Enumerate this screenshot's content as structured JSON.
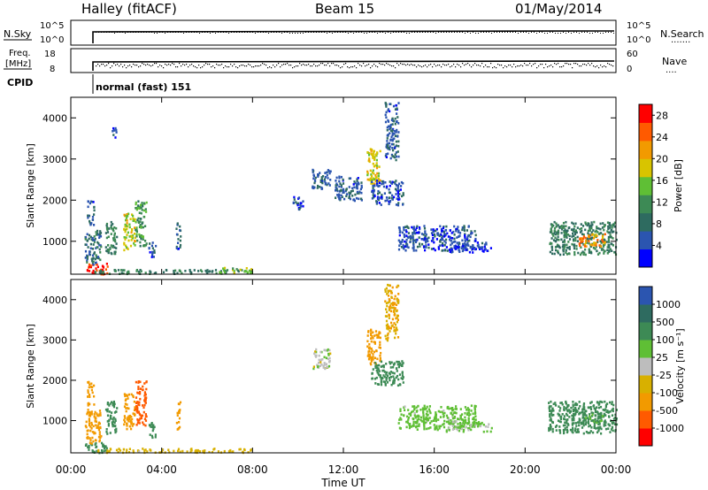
{
  "header": {
    "station": "Halley (fitACF)",
    "beam": "Beam 15",
    "date": "01/May/2014"
  },
  "param_panels": {
    "nsky_label": "N.Sky",
    "nsearch_label": "N.Search",
    "nsearch_marker": ".......",
    "noise_ticks": [
      "10^5",
      "10^0"
    ],
    "freq_label_1": "Freq.",
    "freq_label_2": "[MHz]",
    "freq_ticks": [
      "18",
      "8"
    ],
    "nave_label": "Nave",
    "nave_marker": "....",
    "nave_ticks": [
      "60",
      "0"
    ],
    "cpid_label": "CPID",
    "cpid_text": "normal (fast) 151"
  },
  "colors": {
    "power": [
      "#0000ff",
      "#2b55b0",
      "#2e6b60",
      "#3d8a55",
      "#5fbf35",
      "#d8c400",
      "#f29a00",
      "#ff5a00",
      "#ff0000"
    ],
    "velocity": [
      "#ff0000",
      "#ff5a00",
      "#f29a00",
      "#d8b000",
      "#bdbdbd",
      "#5fbf35",
      "#3d8a55",
      "#2e6b60",
      "#2b55b0"
    ]
  },
  "chart_data": [
    {
      "type": "heatmap",
      "panel": "power",
      "ylabel": "Slant Range [km]",
      "xlim": [
        "00:00",
        "00:00"
      ],
      "ylim": [
        200,
        4500
      ],
      "yticks": [
        "1000",
        "2000",
        "3000",
        "4000"
      ],
      "colorbar": {
        "label": "Power [dB]",
        "ticks": [
          "4",
          "8",
          "12",
          "16",
          "20",
          "24",
          "28"
        ],
        "range": [
          0,
          30
        ]
      },
      "regions": [
        {
          "t0": 0.6,
          "t1": 1.6,
          "r0": 220,
          "r1": 480,
          "value": 28
        },
        {
          "t0": 0.6,
          "t1": 1.3,
          "r0": 450,
          "r1": 1300,
          "value": 8
        },
        {
          "t0": 0.7,
          "t1": 1.0,
          "r0": 1400,
          "r1": 2000,
          "value": 6
        },
        {
          "t0": 1.5,
          "t1": 2.0,
          "r0": 700,
          "r1": 1500,
          "value": 10
        },
        {
          "t0": 2.3,
          "t1": 2.8,
          "r0": 800,
          "r1": 1700,
          "value": 18
        },
        {
          "t0": 2.8,
          "t1": 3.3,
          "r0": 900,
          "r1": 2000,
          "value": 12
        },
        {
          "t0": 3.4,
          "t1": 3.7,
          "r0": 600,
          "r1": 1000,
          "value": 6
        },
        {
          "t0": 4.6,
          "t1": 4.8,
          "r0": 800,
          "r1": 1500,
          "value": 6
        },
        {
          "t0": 1.8,
          "t1": 2.0,
          "r0": 3500,
          "r1": 3800,
          "value": 4
        },
        {
          "t0": 1.0,
          "t1": 8.0,
          "r0": 230,
          "r1": 330,
          "value": 10
        },
        {
          "t0": 6.5,
          "t1": 8.0,
          "r0": 250,
          "r1": 380,
          "value": 16
        },
        {
          "t0": 9.7,
          "t1": 10.2,
          "r0": 1800,
          "r1": 2100,
          "value": 5
        },
        {
          "t0": 10.6,
          "t1": 11.4,
          "r0": 2300,
          "r1": 2800,
          "value": 6
        },
        {
          "t0": 11.6,
          "t1": 12.8,
          "r0": 2000,
          "r1": 2600,
          "value": 6
        },
        {
          "t0": 13.0,
          "t1": 13.6,
          "r0": 2400,
          "r1": 3300,
          "value": 18
        },
        {
          "t0": 13.8,
          "t1": 14.4,
          "r0": 3000,
          "r1": 4400,
          "value": 6
        },
        {
          "t0": 13.2,
          "t1": 14.6,
          "r0": 1900,
          "r1": 2500,
          "value": 5
        },
        {
          "t0": 14.4,
          "t1": 17.8,
          "r0": 800,
          "r1": 1400,
          "value": 5
        },
        {
          "t0": 16.5,
          "t1": 18.5,
          "r0": 750,
          "r1": 1000,
          "value": 4
        },
        {
          "t0": 21.0,
          "t1": 24.0,
          "r0": 700,
          "r1": 1500,
          "value": 10
        },
        {
          "t0": 22.3,
          "t1": 23.5,
          "r0": 900,
          "r1": 1200,
          "value": 22
        }
      ]
    },
    {
      "type": "heatmap",
      "panel": "velocity",
      "xlabel": "Time UT",
      "ylabel": "Slant Range [km]",
      "xticks": [
        "00:00",
        "04:00",
        "08:00",
        "12:00",
        "16:00",
        "20:00",
        "00:00"
      ],
      "xlim": [
        "00:00",
        "00:00"
      ],
      "ylim": [
        200,
        4500
      ],
      "yticks": [
        "1000",
        "2000",
        "3000",
        "4000"
      ],
      "colorbar": {
        "label": "Velocity [m s⁻¹]",
        "ticks": [
          "-1000",
          "-500",
          "-100",
          "-25",
          "25",
          "100",
          "500",
          "1000"
        ],
        "range": [
          -1500,
          1500
        ]
      },
      "regions": [
        {
          "t0": 0.6,
          "t1": 1.6,
          "r0": 220,
          "r1": 480,
          "value": 400
        },
        {
          "t0": 0.6,
          "t1": 1.3,
          "r0": 450,
          "r1": 1300,
          "value": -300
        },
        {
          "t0": 0.7,
          "t1": 1.0,
          "r0": 1400,
          "r1": 2000,
          "value": -200
        },
        {
          "t0": 1.5,
          "t1": 2.0,
          "r0": 700,
          "r1": 1500,
          "value": 300
        },
        {
          "t0": 2.3,
          "t1": 2.8,
          "r0": 800,
          "r1": 1700,
          "value": -400
        },
        {
          "t0": 2.8,
          "t1": 3.3,
          "r0": 900,
          "r1": 2000,
          "value": -600
        },
        {
          "t0": 3.4,
          "t1": 3.7,
          "r0": 600,
          "r1": 1000,
          "value": 200
        },
        {
          "t0": 4.6,
          "t1": 4.8,
          "r0": 800,
          "r1": 1500,
          "value": -150
        },
        {
          "t0": 1.0,
          "t1": 8.0,
          "r0": 230,
          "r1": 330,
          "value": -60
        },
        {
          "t0": 10.6,
          "t1": 11.4,
          "r0": 2300,
          "r1": 2800,
          "value": 0
        },
        {
          "t0": 13.0,
          "t1": 13.6,
          "r0": 2400,
          "r1": 3300,
          "value": -300
        },
        {
          "t0": 13.8,
          "t1": 14.4,
          "r0": 3000,
          "r1": 4400,
          "value": -100
        },
        {
          "t0": 13.2,
          "t1": 14.6,
          "r0": 1900,
          "r1": 2500,
          "value": 150
        },
        {
          "t0": 14.4,
          "t1": 17.8,
          "r0": 800,
          "r1": 1400,
          "value": 60
        },
        {
          "t0": 16.5,
          "t1": 18.5,
          "r0": 750,
          "r1": 1000,
          "value": 40
        },
        {
          "t0": 21.0,
          "t1": 24.0,
          "r0": 700,
          "r1": 1500,
          "value": 300
        },
        {
          "t0": 22.3,
          "t1": 23.5,
          "r0": 900,
          "r1": 1200,
          "value": 120
        }
      ]
    }
  ]
}
